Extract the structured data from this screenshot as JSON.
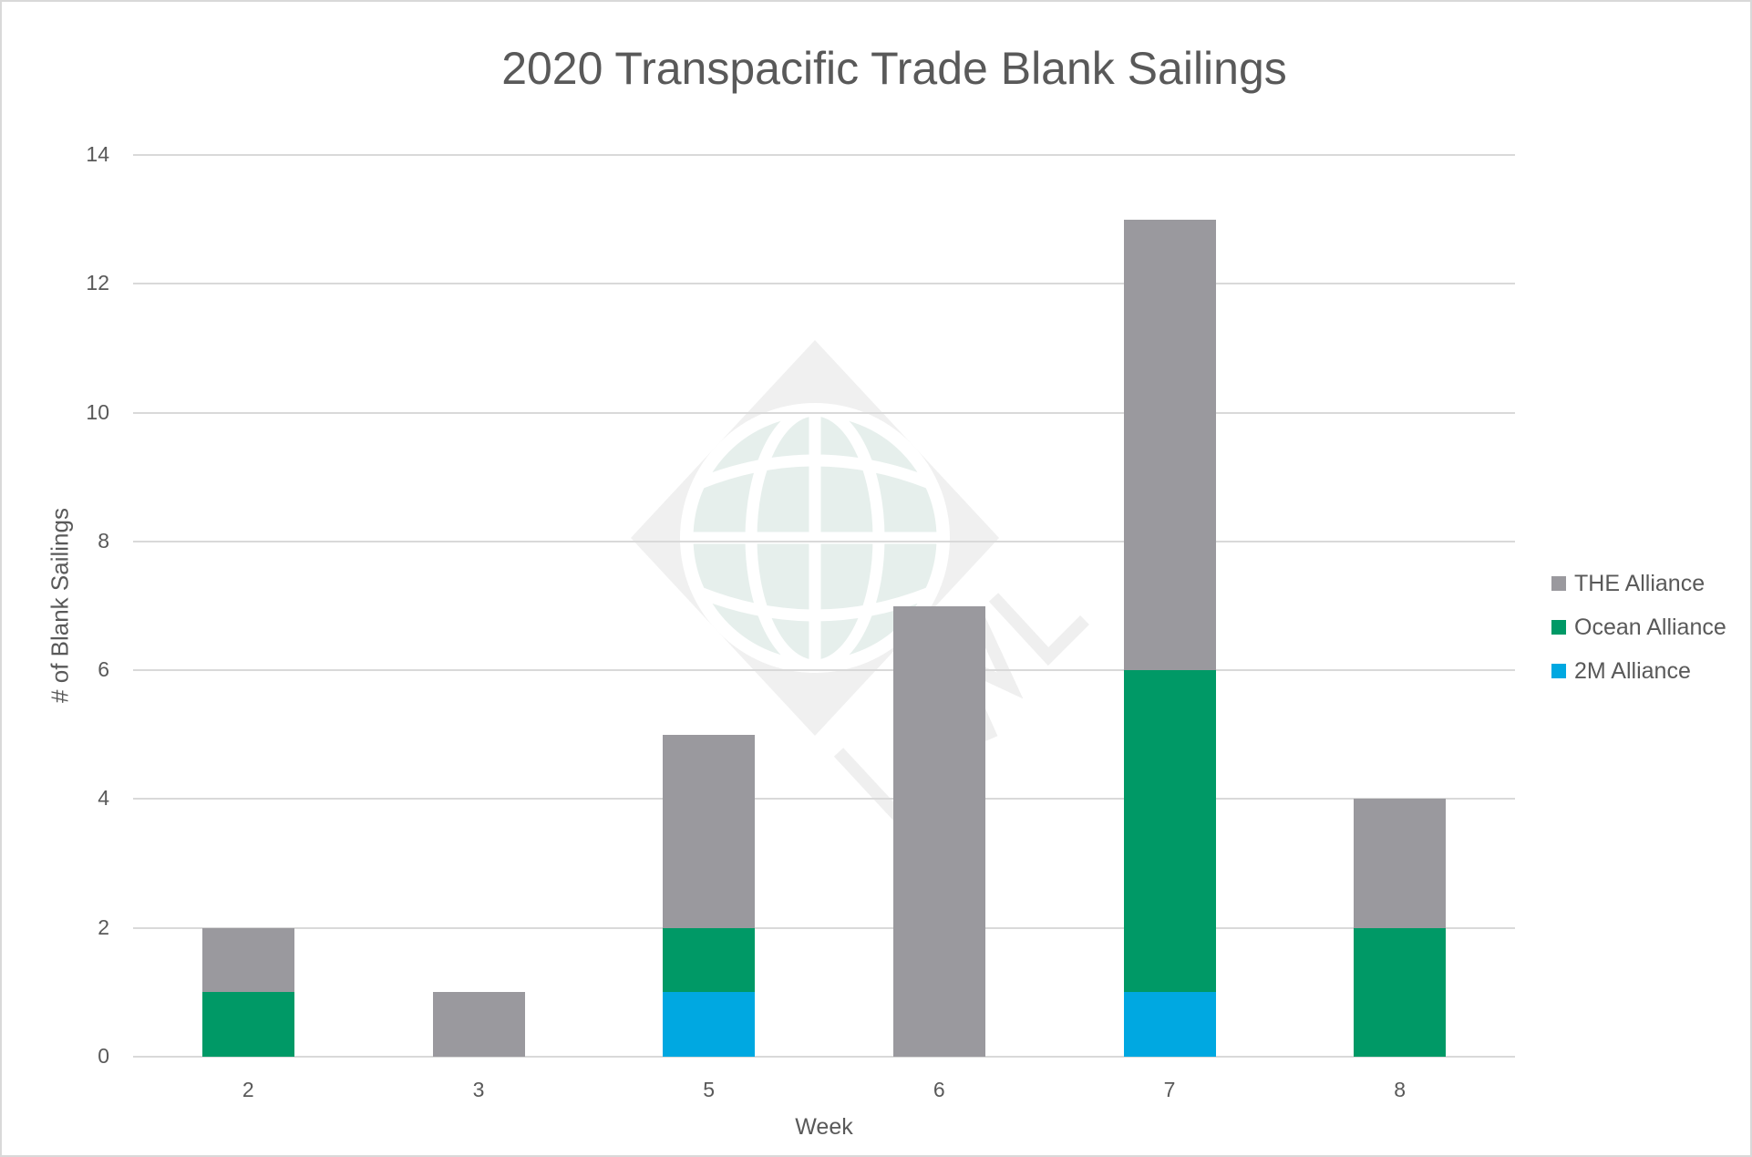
{
  "chart_data": {
    "type": "bar",
    "stacked": true,
    "title": "2020 Transpacific Trade Blank Sailings",
    "xlabel": "Week",
    "ylabel": "# of Blank Sailings",
    "categories": [
      "2",
      "3",
      "5",
      "6",
      "7",
      "8"
    ],
    "series": [
      {
        "name": "2M Alliance",
        "color": "#00a8e1",
        "values": [
          0,
          0,
          1,
          0,
          1,
          0
        ]
      },
      {
        "name": "Ocean Alliance",
        "color": "#009966",
        "values": [
          1,
          0,
          1,
          0,
          5,
          2
        ]
      },
      {
        "name": "THE Alliance",
        "color": "#9a999e",
        "values": [
          1,
          1,
          3,
          7,
          7,
          2
        ]
      }
    ],
    "totals": [
      2,
      1,
      5,
      7,
      13,
      4
    ],
    "ylim": [
      0,
      14
    ],
    "yticks": [
      "0",
      "2",
      "4",
      "6",
      "8",
      "10",
      "12",
      "14"
    ],
    "grid": true,
    "legend_position": "right",
    "legend": [
      "THE Alliance",
      "Ocean Alliance",
      "2M Alliance"
    ]
  },
  "chart": {
    "title": "2020 Transpacific Trade Blank Sailings",
    "xlabel": "Week",
    "ylabel": "# of Blank Sailings",
    "yticks": [
      "0",
      "2",
      "4",
      "6",
      "8",
      "10",
      "12",
      "14"
    ],
    "xticks": [
      "2",
      "3",
      "5",
      "6",
      "7",
      "8"
    ],
    "legend": [
      {
        "label": "THE Alliance",
        "color": "#9a999e"
      },
      {
        "label": "Ocean Alliance",
        "color": "#009966"
      },
      {
        "label": "2M Alliance",
        "color": "#00a8e1"
      }
    ]
  },
  "watermark": {
    "text": "WL",
    "icon": "globe-diamond-logo"
  }
}
